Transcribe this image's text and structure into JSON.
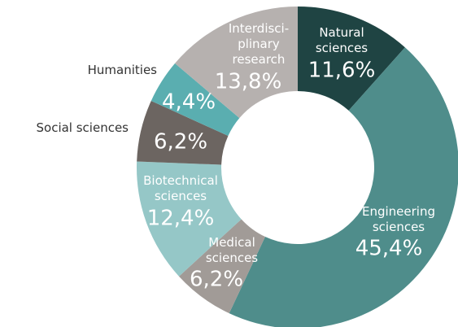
{
  "chart_data": {
    "type": "donut",
    "categories": [
      "Natural\nsciences",
      "Engineering\nsciences",
      "Medical\nsciences",
      "Biotechnical\nsciences",
      "Social sciences",
      "Humanities",
      "Interdisci-\nplinary\nresearch"
    ],
    "values": [
      11.6,
      45.4,
      6.2,
      12.4,
      6.2,
      4.4,
      13.8
    ],
    "value_labels": [
      "11,6%",
      "45,4%",
      "6,2%",
      "12,4%",
      "6,2%",
      "4,4%",
      "13,8%"
    ],
    "colors": [
      "#1f4443",
      "#4f8d8b",
      "#a19b97",
      "#95c7c7",
      "#6c6561",
      "#5aaeb0",
      "#b6b1af"
    ]
  }
}
